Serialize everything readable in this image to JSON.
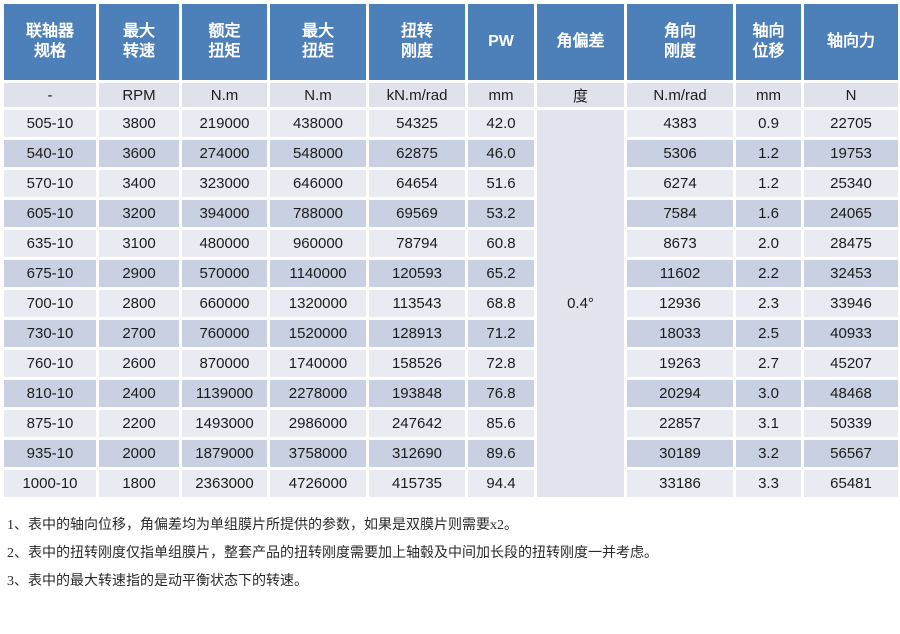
{
  "colors": {
    "header_bg": "#4d80b9",
    "header_text": "#ffffff",
    "unit_row_bg": "#e0e2eb",
    "row_light_bg": "#e9ebf3",
    "row_dark_bg": "#c9d0e1",
    "merged_cell_bg": "#e3e5ee"
  },
  "table": {
    "columns": [
      {
        "key": "spec",
        "label": "联轴器\n规格",
        "unit": "-"
      },
      {
        "key": "max-speed",
        "label": "最大\n转速",
        "unit": "RPM"
      },
      {
        "key": "rated-torque",
        "label": "额定\n扭矩",
        "unit": "N.m"
      },
      {
        "key": "max-torque",
        "label": "最大\n扭矩",
        "unit": "N.m"
      },
      {
        "key": "torsional-stiffness",
        "label": "扭转\n刚度",
        "unit": "kN.m/rad"
      },
      {
        "key": "pw",
        "label": "PW",
        "unit": "mm"
      },
      {
        "key": "angular-deviation",
        "label": "角偏差",
        "unit": "度"
      },
      {
        "key": "angular-stiffness",
        "label": "角向\n刚度",
        "unit": "N.m/rad"
      },
      {
        "key": "axial-displacement",
        "label": "轴向\n位移",
        "unit": "mm"
      },
      {
        "key": "axial-force",
        "label": "轴向力",
        "unit": "N"
      }
    ],
    "angular_deviation_merged_value": "0.4°",
    "rows": [
      [
        "505-10",
        "3800",
        "219000",
        "438000",
        "54325",
        "42.0",
        "4383",
        "0.9",
        "22705"
      ],
      [
        "540-10",
        "3600",
        "274000",
        "548000",
        "62875",
        "46.0",
        "5306",
        "1.2",
        "19753"
      ],
      [
        "570-10",
        "3400",
        "323000",
        "646000",
        "64654",
        "51.6",
        "6274",
        "1.2",
        "25340"
      ],
      [
        "605-10",
        "3200",
        "394000",
        "788000",
        "69569",
        "53.2",
        "7584",
        "1.6",
        "24065"
      ],
      [
        "635-10",
        "3100",
        "480000",
        "960000",
        "78794",
        "60.8",
        "8673",
        "2.0",
        "28475"
      ],
      [
        "675-10",
        "2900",
        "570000",
        "1140000",
        "120593",
        "65.2",
        "11602",
        "2.2",
        "32453"
      ],
      [
        "700-10",
        "2800",
        "660000",
        "1320000",
        "113543",
        "68.8",
        "12936",
        "2.3",
        "33946"
      ],
      [
        "730-10",
        "2700",
        "760000",
        "1520000",
        "128913",
        "71.2",
        "18033",
        "2.5",
        "40933"
      ],
      [
        "760-10",
        "2600",
        "870000",
        "1740000",
        "158526",
        "72.8",
        "19263",
        "2.7",
        "45207"
      ],
      [
        "810-10",
        "2400",
        "1139000",
        "2278000",
        "193848",
        "76.8",
        "20294",
        "3.0",
        "48468"
      ],
      [
        "875-10",
        "2200",
        "1493000",
        "2986000",
        "247642",
        "85.6",
        "22857",
        "3.1",
        "50339"
      ],
      [
        "935-10",
        "2000",
        "1879000",
        "3758000",
        "312690",
        "89.6",
        "30189",
        "3.2",
        "56567"
      ],
      [
        "1000-10",
        "1800",
        "2363000",
        "4726000",
        "415735",
        "94.4",
        "33186",
        "3.3",
        "65481"
      ]
    ]
  },
  "notes": [
    "1、表中的轴向位移，角偏差均为单组膜片所提供的参数，如果是双膜片则需要x2。",
    "2、表中的扭转刚度仅指单组膜片，整套产品的扭转刚度需要加上轴毂及中间加长段的扭转刚度一并考虑。",
    "3、表中的最大转速指的是动平衡状态下的转速。"
  ]
}
